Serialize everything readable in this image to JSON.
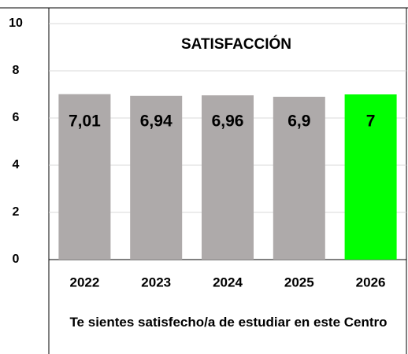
{
  "chart_data": {
    "type": "bar",
    "title": "SATISFACCIÓN",
    "x_label": "Te sientes satisfecho/a de estudiar en este Centro",
    "categories": [
      "2022",
      "2023",
      "2024",
      "2025",
      "2026"
    ],
    "values": [
      7.01,
      6.94,
      6.96,
      6.9,
      7
    ],
    "value_labels": [
      "7,01",
      "6,94",
      "6,96",
      "6,9",
      "7"
    ],
    "colors": [
      "#aeaaaa",
      "#aeaaaa",
      "#aeaaaa",
      "#aeaaaa",
      "#00ff00"
    ],
    "ylim": [
      0,
      10
    ],
    "yticks": [
      0,
      2,
      4,
      6,
      8,
      10
    ],
    "grid": true
  }
}
